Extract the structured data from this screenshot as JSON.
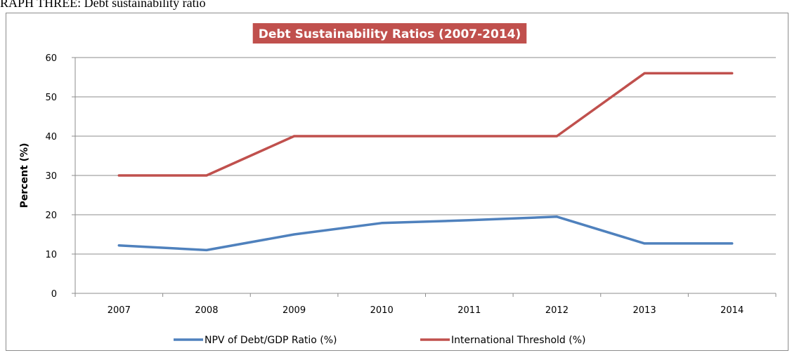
{
  "caption": "RAPH THREE: Debt sustainability ratio",
  "chart_data": {
    "type": "line",
    "title": "Debt Sustainability Ratios (2007-2014)",
    "xlabel": "",
    "ylabel": "Percent (%)",
    "categories": [
      "2007",
      "2008",
      "2009",
      "2010",
      "2011",
      "2012",
      "2013",
      "2014"
    ],
    "ylim": [
      0,
      60
    ],
    "yticks": [
      0,
      10,
      20,
      30,
      40,
      50,
      60
    ],
    "grid": true,
    "legend": "bottom",
    "title_bg_color": "#c0504d",
    "series": [
      {
        "name": "NPV of Debt/GDP Ratio (%)",
        "color": "#4f81bd",
        "values": [
          12.2,
          11.0,
          15.0,
          17.9,
          18.6,
          19.5,
          12.7,
          12.7
        ]
      },
      {
        "name": "International Threshold (%)",
        "color": "#c0504d",
        "values": [
          30,
          30,
          40,
          40,
          40,
          40,
          56,
          56
        ]
      }
    ]
  }
}
